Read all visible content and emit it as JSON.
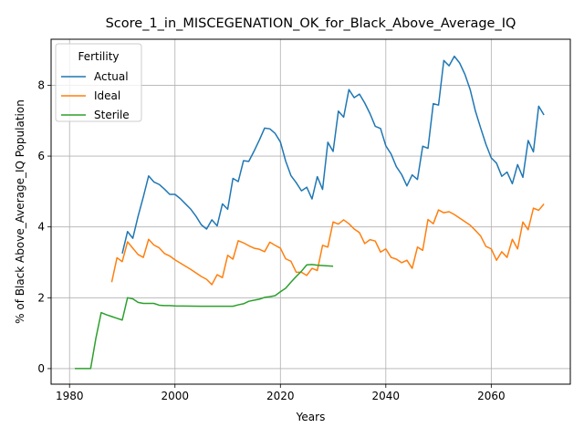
{
  "chart_data": {
    "type": "line",
    "title": "Score_1_in_MISCEGENATION_OK_for_Black_Above_Average_IQ",
    "xlabel": "Years",
    "ylabel": "% of Black Above_Average_IQ Population",
    "xlim": [
      1976.5,
      2075
    ],
    "ylim": [
      -0.44,
      9.3
    ],
    "xticks": [
      1980,
      2000,
      2020,
      2040,
      2060
    ],
    "yticks": [
      0,
      2,
      4,
      6,
      8
    ],
    "grid": true,
    "legend": {
      "title": "Fertility",
      "placement": "top-left"
    },
    "colors": {
      "Actual": "#1f77b4",
      "Ideal": "#ff7f0e",
      "Sterile": "#2ca02c"
    },
    "series": [
      {
        "name": "Actual",
        "x": [
          1990,
          1991,
          1992,
          1993,
          1994,
          1995,
          1996,
          1997,
          1998,
          1999,
          2000,
          2001,
          2002,
          2003,
          2004,
          2005,
          2006,
          2007,
          2008,
          2009,
          2010,
          2011,
          2012,
          2013,
          2014,
          2015,
          2016,
          2017,
          2018,
          2019,
          2020,
          2021,
          2022,
          2023,
          2024,
          2025,
          2026,
          2027,
          2028,
          2029,
          2030,
          2031,
          2032,
          2033,
          2034,
          2035,
          2036,
          2037,
          2038,
          2039,
          2040,
          2041,
          2042,
          2043,
          2044,
          2045,
          2046,
          2047,
          2048,
          2049,
          2050,
          2051,
          2052,
          2053,
          2054,
          2055,
          2056,
          2057,
          2058,
          2059,
          2060,
          2061,
          2062,
          2063,
          2064,
          2065,
          2066,
          2067,
          2068,
          2069,
          2070
        ],
        "y": [
          3.25,
          3.87,
          3.68,
          4.3,
          4.85,
          5.44,
          5.27,
          5.2,
          5.07,
          4.92,
          4.92,
          4.8,
          4.65,
          4.5,
          4.3,
          4.06,
          3.94,
          4.2,
          4.03,
          4.65,
          4.5,
          5.37,
          5.28,
          5.87,
          5.85,
          6.14,
          6.45,
          6.79,
          6.77,
          6.64,
          6.4,
          5.86,
          5.45,
          5.25,
          5.02,
          5.12,
          4.79,
          5.42,
          5.06,
          6.39,
          6.13,
          7.27,
          7.1,
          7.88,
          7.65,
          7.75,
          7.5,
          7.2,
          6.84,
          6.78,
          6.29,
          6.06,
          5.7,
          5.48,
          5.16,
          5.47,
          5.34,
          6.28,
          6.22,
          7.48,
          7.44,
          8.7,
          8.55,
          8.82,
          8.63,
          8.31,
          7.88,
          7.27,
          6.79,
          6.33,
          5.95,
          5.8,
          5.43,
          5.55,
          5.22,
          5.76,
          5.4,
          6.44,
          6.12,
          7.41,
          7.16
        ]
      },
      {
        "name": "Ideal",
        "x": [
          1988,
          1989,
          1990,
          1991,
          1992,
          1993,
          1994,
          1995,
          1996,
          1997,
          1998,
          1999,
          2000,
          2001,
          2002,
          2003,
          2004,
          2005,
          2006,
          2007,
          2008,
          2009,
          2010,
          2011,
          2012,
          2013,
          2014,
          2015,
          2016,
          2017,
          2018,
          2019,
          2020,
          2021,
          2022,
          2023,
          2024,
          2025,
          2026,
          2027,
          2028,
          2029,
          2030,
          2031,
          2032,
          2033,
          2034,
          2035,
          2036,
          2037,
          2038,
          2039,
          2040,
          2041,
          2042,
          2043,
          2044,
          2045,
          2046,
          2047,
          2048,
          2049,
          2050,
          2051,
          2052,
          2053,
          2054,
          2055,
          2056,
          2057,
          2058,
          2059,
          2060,
          2061,
          2062,
          2063,
          2064,
          2065,
          2066,
          2067,
          2068,
          2069,
          2070
        ],
        "y": [
          2.44,
          3.13,
          3.02,
          3.58,
          3.4,
          3.22,
          3.14,
          3.65,
          3.49,
          3.41,
          3.25,
          3.18,
          3.07,
          2.98,
          2.89,
          2.8,
          2.7,
          2.6,
          2.52,
          2.37,
          2.65,
          2.57,
          3.2,
          3.09,
          3.61,
          3.55,
          3.47,
          3.4,
          3.37,
          3.3,
          3.57,
          3.48,
          3.4,
          3.1,
          3.03,
          2.72,
          2.72,
          2.63,
          2.83,
          2.77,
          3.48,
          3.43,
          4.14,
          4.08,
          4.2,
          4.09,
          3.94,
          3.84,
          3.53,
          3.64,
          3.6,
          3.29,
          3.38,
          3.14,
          3.09,
          2.99,
          3.06,
          2.83,
          3.43,
          3.34,
          4.21,
          4.09,
          4.48,
          4.4,
          4.43,
          4.35,
          4.25,
          4.15,
          4.05,
          3.9,
          3.74,
          3.45,
          3.38,
          3.06,
          3.3,
          3.14,
          3.65,
          3.38,
          4.14,
          3.92,
          4.53,
          4.47,
          4.65
        ]
      },
      {
        "name": "Sterile",
        "x": [
          1981,
          1982,
          1983,
          1984,
          1985,
          1986,
          1987,
          1988,
          1989,
          1990,
          1991,
          1992,
          1993,
          1994,
          1995,
          1996,
          1997,
          1998,
          1999,
          2000,
          2005,
          2010,
          2011,
          2012,
          2013,
          2014,
          2015,
          2016,
          2017,
          2018,
          2019,
          2020,
          2021,
          2022,
          2023,
          2024,
          2025,
          2026,
          2027,
          2030
        ],
        "y": [
          0.0,
          0.0,
          0.0,
          0.0,
          0.86,
          1.58,
          1.52,
          1.47,
          1.42,
          1.37,
          2.0,
          1.97,
          1.87,
          1.84,
          1.84,
          1.84,
          1.79,
          1.78,
          1.78,
          1.77,
          1.76,
          1.76,
          1.76,
          1.8,
          1.83,
          1.9,
          1.93,
          1.96,
          2.01,
          2.03,
          2.06,
          2.17,
          2.27,
          2.44,
          2.6,
          2.75,
          2.93,
          2.94,
          2.92,
          2.89
        ]
      }
    ]
  }
}
